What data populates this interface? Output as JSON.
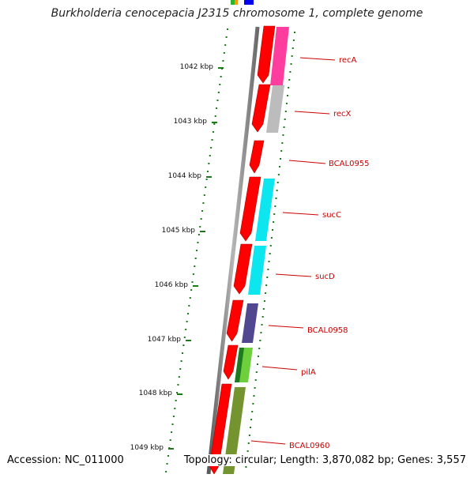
{
  "title": "Burkholderia cenocepacia J2315 chromosome 1, complete genome",
  "accession": "Accession: NC_011000",
  "topology": "Topology: circular; Length: 3,870,082 bp; Genes: 3,557",
  "colors": {
    "forward_strand": "#ff0000",
    "gene_label": "#cc0000",
    "ticks": "#1a7a1a",
    "backbone": "#808080"
  },
  "scale_labels": [
    "1042 kbp",
    "1043 kbp",
    "1044 kbp",
    "1045 kbp",
    "1046 kbp",
    "1047 kbp",
    "1048 kbp",
    "1049 kbp"
  ],
  "genes": [
    {
      "name": "recA",
      "color": "#ff3399"
    },
    {
      "name": "recX",
      "color": "#b8b8b8"
    },
    {
      "name": "BCAL0955",
      "color": ""
    },
    {
      "name": "sucC",
      "color": "#00e5ee"
    },
    {
      "name": "sucD",
      "color": "#00e5ee"
    },
    {
      "name": "BCAL0958",
      "color": "#483d8b"
    },
    {
      "name": "pilA",
      "color": "#66cc33"
    },
    {
      "name": "BCAL0960",
      "color": "#6b8e23"
    }
  ]
}
